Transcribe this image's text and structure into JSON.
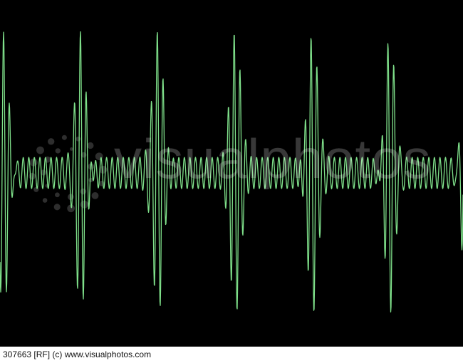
{
  "image": {
    "subject": "green oscilloscope waveform",
    "background_color": "#000000",
    "trace_color": "#7fe08a"
  },
  "watermark": {
    "text": "visualphotos",
    "icon": "dotted-circle-logo"
  },
  "caption": {
    "text": "307663 [RF] (c) www.visualphotos.com"
  }
}
